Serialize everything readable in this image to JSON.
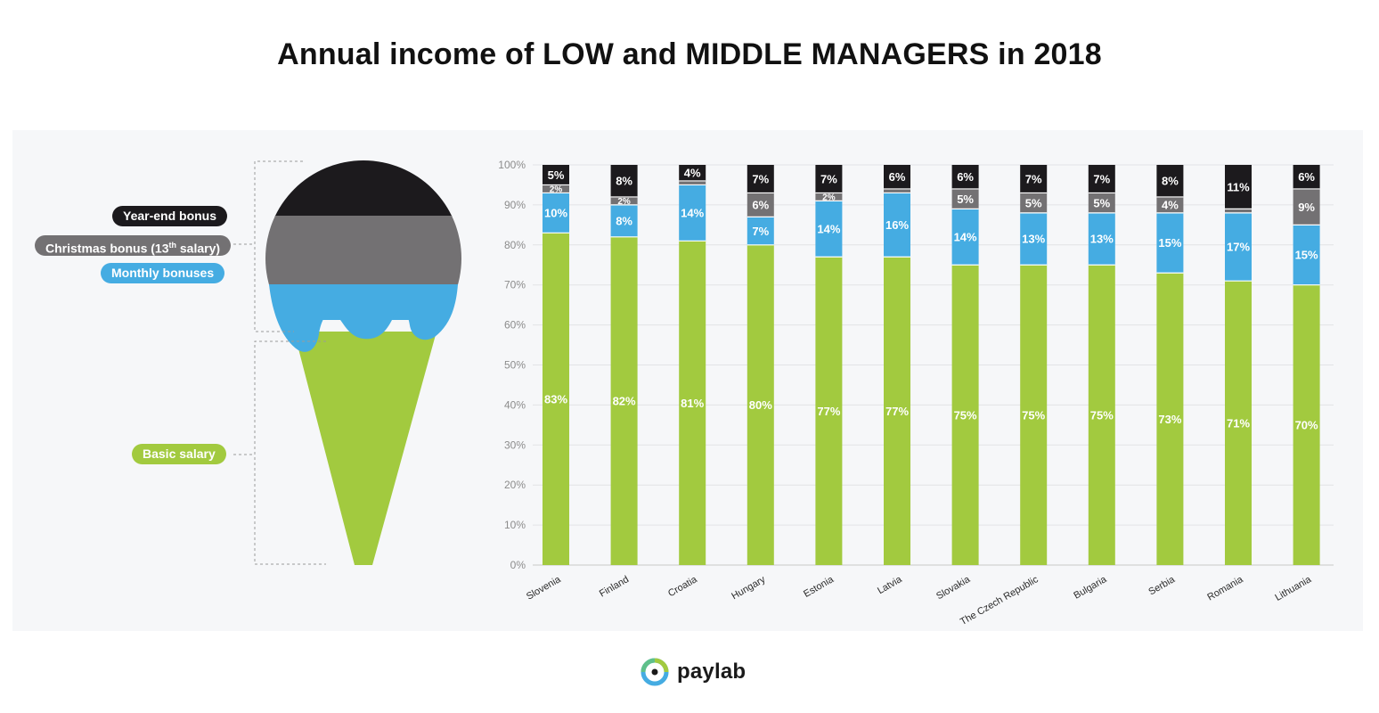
{
  "title": "Annual income of LOW and MIDDLE MANAGERS in 2018",
  "legend": {
    "items": [
      {
        "label": "Year-end bonus",
        "color": "#1c1a1d"
      },
      {
        "label": "Christmas bonus (13",
        "sup": "th",
        "tail": " salary)",
        "color": "#737173"
      },
      {
        "label": "Monthly bonuses",
        "color": "#45ace2"
      },
      {
        "label": "Basic salary",
        "color": "#a2ca3f"
      }
    ]
  },
  "logo": {
    "text": "paylab",
    "icon": "paylab-ring-icon"
  },
  "chart_data": {
    "type": "bar",
    "stacked": true,
    "title": "Annual income of LOW and MIDDLE MANAGERS in 2018",
    "xlabel": "",
    "ylabel": "",
    "ylim": [
      0,
      100
    ],
    "y_ticks": [
      "0%",
      "10%",
      "20%",
      "30%",
      "40%",
      "50%",
      "60%",
      "70%",
      "80%",
      "90%",
      "100%"
    ],
    "grid": true,
    "legend_position": "left",
    "categories": [
      "Slovenia",
      "Finland",
      "Croatia",
      "Hungary",
      "Estonia",
      "Latvia",
      "Slovakia",
      "The Czech Republic",
      "Bulgaria",
      "Serbia",
      "Romania",
      "Lithuania"
    ],
    "series": [
      {
        "name": "Basic salary",
        "color": "#a2ca3f",
        "values": [
          83,
          82,
          81,
          80,
          77,
          77,
          75,
          75,
          75,
          73,
          71,
          70
        ],
        "labels": [
          "83%",
          "82%",
          "81%",
          "80%",
          "77%",
          "77%",
          "75%",
          "75%",
          "75%",
          "73%",
          "71%",
          "70%"
        ]
      },
      {
        "name": "Monthly bonuses",
        "color": "#45ace2",
        "values": [
          10,
          8,
          14,
          7,
          14,
          16,
          14,
          13,
          13,
          15,
          17,
          15
        ],
        "labels": [
          "10%",
          "8%",
          "14%",
          "7%",
          "14%",
          "16%",
          "14%",
          "13%",
          "13%",
          "15%",
          "17%",
          "15%"
        ]
      },
      {
        "name": "Christmas bonus (13th salary)",
        "color": "#737173",
        "values": [
          2,
          2,
          1,
          6,
          2,
          1,
          5,
          5,
          5,
          4,
          1,
          9
        ],
        "labels": [
          "2%",
          "2%",
          "",
          "6%",
          "2%",
          "",
          "5%",
          "5%",
          "5%",
          "4%",
          "",
          "9%"
        ]
      },
      {
        "name": "Year-end bonus",
        "color": "#1c1a1d",
        "values": [
          5,
          8,
          4,
          7,
          7,
          6,
          6,
          7,
          7,
          8,
          11,
          6
        ],
        "labels": [
          "5%",
          "8%",
          "4%",
          "7%",
          "7%",
          "6%",
          "6%",
          "7%",
          "7%",
          "8%",
          "11%",
          "6%"
        ]
      }
    ]
  }
}
